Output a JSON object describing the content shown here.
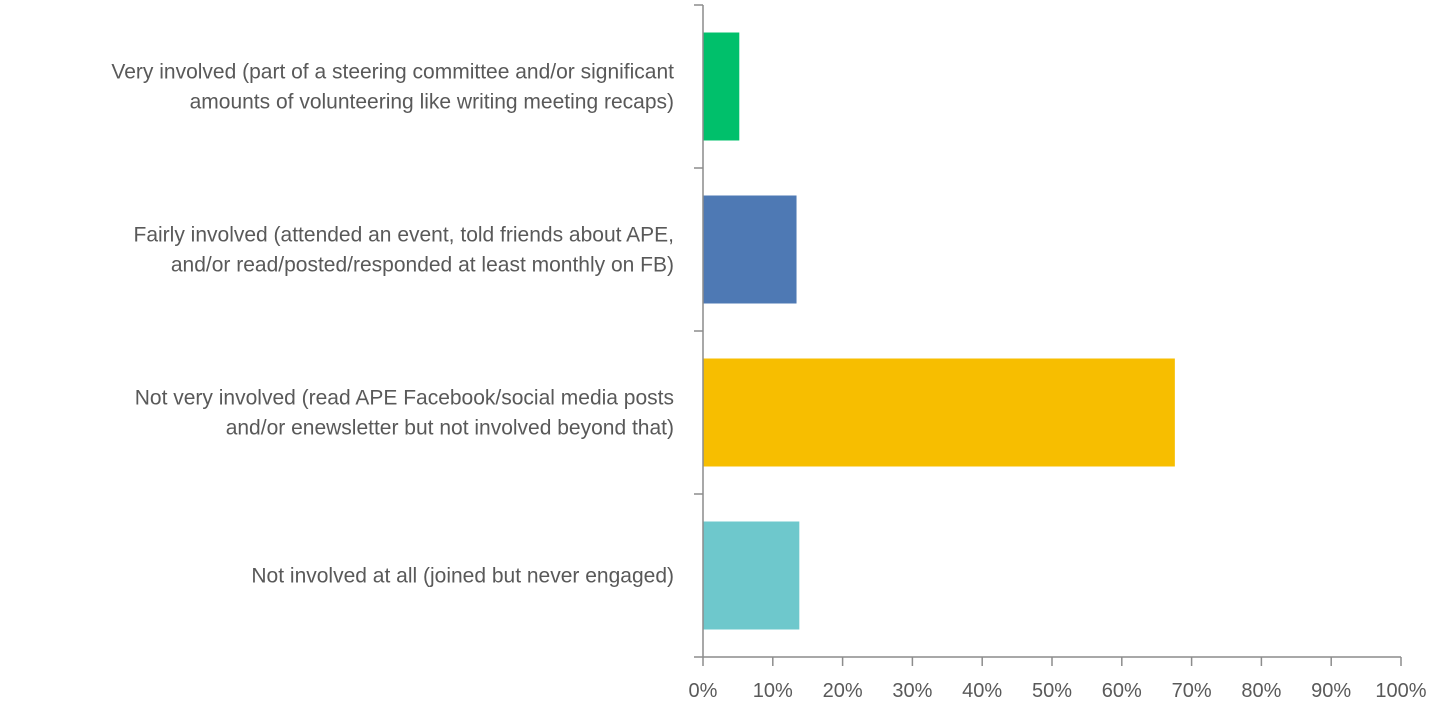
{
  "chart_data": {
    "type": "bar",
    "orientation": "horizontal",
    "title": "",
    "xlabel": "",
    "ylabel": "",
    "xlim": [
      0,
      100
    ],
    "x_ticks": [
      0,
      10,
      20,
      30,
      40,
      50,
      60,
      70,
      80,
      90,
      100
    ],
    "tick_format": "{v}%",
    "grid": false,
    "legend": "none",
    "categories": [
      {
        "lines": [
          "Very involved (part of a steering committee and/or significant",
          "amounts of volunteering like writing meeting recaps)"
        ],
        "value": 5.2,
        "color": "#00c06b"
      },
      {
        "lines": [
          "Fairly involved (attended an event, told friends about APE,",
          "and/or read/posted/responded at least monthly on FB)"
        ],
        "value": 13.4,
        "color": "#4e79b4"
      },
      {
        "lines": [
          "Not very involved (read APE Facebook/social media posts",
          "and/or enewsletter but not involved beyond that)"
        ],
        "value": 67.6,
        "color": "#f7be00"
      },
      {
        "lines": [
          "Not involved at all (joined but never engaged)"
        ],
        "value": 13.8,
        "color": "#6ec8cc"
      }
    ]
  }
}
